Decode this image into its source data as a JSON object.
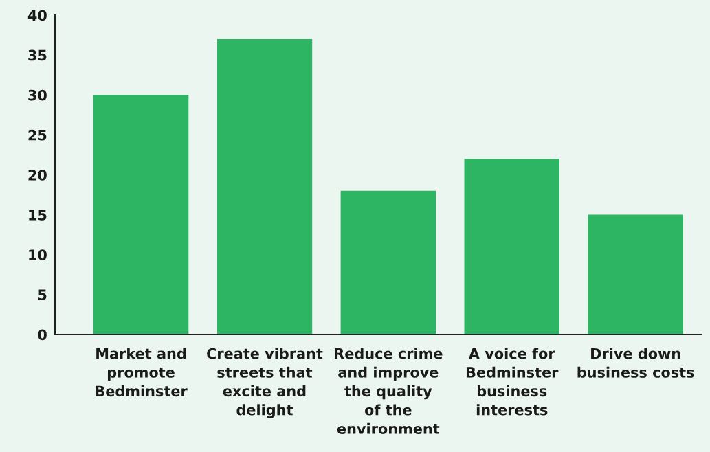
{
  "chart_data": {
    "type": "bar",
    "categories": [
      "Market and\npromote\nBedminster",
      "Create vibrant\nstreets that\nexcite and\ndelight",
      "Reduce crime\nand improve\nthe quality\nof the\nenvironment",
      "A voice for\nBedminster\nbusiness\ninterests",
      "Drive down\nbusiness costs"
    ],
    "values": [
      30,
      37,
      18,
      22,
      15
    ],
    "color": "#2db563",
    "ylim": [
      0,
      40
    ],
    "yticks": [
      0,
      5,
      10,
      15,
      20,
      25,
      30,
      35,
      40
    ],
    "grid": false
  }
}
